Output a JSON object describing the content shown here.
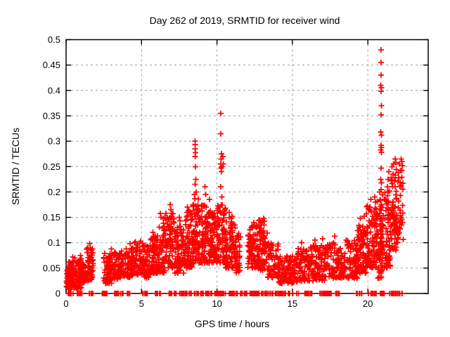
{
  "window": {
    "background": "#ffffff"
  },
  "chart_data": {
    "type": "scatter",
    "title": "Day 262 of 2019, SRMTID for receiver wind",
    "xlabel": "GPS time / hours",
    "ylabel": "SRMTID / TECUs",
    "xlim": [
      0,
      24
    ],
    "ylim": [
      0,
      0.5
    ],
    "xticks": {
      "values": [
        0,
        5,
        10,
        15,
        20
      ],
      "labels": [
        "0",
        "5",
        "10",
        "15",
        "20"
      ]
    },
    "yticks": {
      "values": [
        0,
        0.05,
        0.1,
        0.15,
        0.2,
        0.25,
        0.3,
        0.35,
        0.4,
        0.45,
        0.5
      ],
      "labels": [
        "0",
        "0.05",
        "0.1",
        "0.15",
        "0.2",
        "0.25",
        "0.3",
        "0.35",
        "0.4",
        "0.45",
        "0.5"
      ]
    },
    "grid": true,
    "legend": "none",
    "marker": "plus",
    "marker_color": "#ff0000",
    "grid_color": "#a0a0a0",
    "border_color": "#000000",
    "seed": 20190262,
    "series": [
      {
        "name": "SRMTID",
        "clusters": [
          {
            "x0": 0.02,
            "x1": 0.35,
            "n": 60,
            "ylo": 0.008,
            "yhi": 0.05,
            "pow": 1.3
          },
          {
            "x0": 0.1,
            "x1": 0.55,
            "n": 50,
            "ylo": 0.015,
            "yhi": 0.065,
            "pow": 1.3
          },
          {
            "x0": 0.55,
            "x1": 1.05,
            "n": 80,
            "ylo": 0.01,
            "yhi": 0.07,
            "pow": 1.4
          },
          {
            "x0": 1.05,
            "x1": 1.35,
            "n": 30,
            "ylo": 0.02,
            "yhi": 0.06,
            "pow": 1.3
          },
          {
            "x0": 1.35,
            "x1": 1.8,
            "n": 55,
            "ylo": 0.025,
            "yhi": 0.095,
            "pow": 1.3
          },
          {
            "x0": 2.45,
            "x1": 3.1,
            "n": 65,
            "ylo": 0.02,
            "yhi": 0.08,
            "pow": 1.4
          },
          {
            "x0": 3.1,
            "x1": 3.65,
            "n": 50,
            "ylo": 0.028,
            "yhi": 0.082,
            "pow": 1.3
          },
          {
            "x0": 3.65,
            "x1": 4.3,
            "n": 60,
            "ylo": 0.032,
            "yhi": 0.09,
            "pow": 1.3
          },
          {
            "x0": 4.3,
            "x1": 5.0,
            "n": 70,
            "ylo": 0.035,
            "yhi": 0.1,
            "pow": 1.3
          },
          {
            "x0": 5.0,
            "x1": 5.6,
            "n": 70,
            "ylo": 0.03,
            "yhi": 0.1,
            "pow": 1.3
          },
          {
            "x0": 5.6,
            "x1": 6.1,
            "n": 65,
            "ylo": 0.04,
            "yhi": 0.115,
            "pow": 1.3
          },
          {
            "x0": 6.1,
            "x1": 6.55,
            "n": 55,
            "ylo": 0.04,
            "yhi": 0.15,
            "pow": 1.4
          },
          {
            "x0": 6.55,
            "x1": 7.2,
            "n": 75,
            "ylo": 0.05,
            "yhi": 0.16,
            "pow": 1.5
          },
          {
            "x0": 7.2,
            "x1": 7.9,
            "n": 75,
            "ylo": 0.04,
            "yhi": 0.135,
            "pow": 1.4
          },
          {
            "x0": 7.9,
            "x1": 8.4,
            "n": 65,
            "ylo": 0.05,
            "yhi": 0.165,
            "pow": 1.4
          },
          {
            "x0": 8.4,
            "x1": 8.8,
            "n": 60,
            "ylo": 0.06,
            "yhi": 0.19,
            "pow": 1.4
          },
          {
            "x0": 8.8,
            "x1": 9.45,
            "n": 80,
            "ylo": 0.06,
            "yhi": 0.175,
            "pow": 1.3
          },
          {
            "x0": 9.45,
            "x1": 10.05,
            "n": 85,
            "ylo": 0.06,
            "yhi": 0.165,
            "pow": 1.3
          },
          {
            "x0": 10.05,
            "x1": 10.55,
            "n": 60,
            "ylo": 0.06,
            "yhi": 0.175,
            "pow": 1.3
          },
          {
            "x0": 10.55,
            "x1": 11.25,
            "n": 85,
            "ylo": 0.05,
            "yhi": 0.15,
            "pow": 1.3
          },
          {
            "x0": 11.25,
            "x1": 11.55,
            "n": 35,
            "ylo": 0.04,
            "yhi": 0.12,
            "pow": 1.3
          },
          {
            "x0": 12.05,
            "x1": 12.7,
            "n": 75,
            "ylo": 0.05,
            "yhi": 0.135,
            "pow": 1.3
          },
          {
            "x0": 12.7,
            "x1": 13.35,
            "n": 75,
            "ylo": 0.045,
            "yhi": 0.145,
            "pow": 1.3
          },
          {
            "x0": 13.35,
            "x1": 14.1,
            "n": 70,
            "ylo": 0.03,
            "yhi": 0.1,
            "pow": 1.3
          },
          {
            "x0": 14.1,
            "x1": 15.3,
            "n": 105,
            "ylo": 0.02,
            "yhi": 0.075,
            "pow": 1.3
          },
          {
            "x0": 15.3,
            "x1": 16.2,
            "n": 85,
            "ylo": 0.025,
            "yhi": 0.09,
            "pow": 1.3
          },
          {
            "x0": 16.2,
            "x1": 17.2,
            "n": 95,
            "ylo": 0.025,
            "yhi": 0.095,
            "pow": 1.3
          },
          {
            "x0": 17.2,
            "x1": 18.2,
            "n": 85,
            "ylo": 0.03,
            "yhi": 0.1,
            "pow": 1.3
          },
          {
            "x0": 18.2,
            "x1": 18.55,
            "n": 28,
            "ylo": 0.03,
            "yhi": 0.08,
            "pow": 1.3
          },
          {
            "x0": 18.55,
            "x1": 19.3,
            "n": 75,
            "ylo": 0.03,
            "yhi": 0.105,
            "pow": 1.3
          },
          {
            "x0": 19.3,
            "x1": 19.9,
            "n": 75,
            "ylo": 0.04,
            "yhi": 0.135,
            "pow": 1.3
          },
          {
            "x0": 19.9,
            "x1": 20.6,
            "n": 90,
            "ylo": 0.05,
            "yhi": 0.175,
            "pow": 1.3
          },
          {
            "x0": 20.6,
            "x1": 20.95,
            "n": 55,
            "ylo": 0.03,
            "yhi": 0.2,
            "pow": 1.4
          },
          {
            "x0": 20.82,
            "x1": 20.95,
            "n": 20,
            "ylo": 0.02,
            "yhi": 0.155,
            "pow": 1.0
          },
          {
            "x0": 20.95,
            "x1": 21.5,
            "n": 70,
            "ylo": 0.05,
            "yhi": 0.205,
            "pow": 1.3
          },
          {
            "x0": 21.5,
            "x1": 21.95,
            "n": 65,
            "ylo": 0.08,
            "yhi": 0.245,
            "pow": 1.2
          },
          {
            "x0": 21.95,
            "x1": 22.35,
            "n": 35,
            "ylo": 0.1,
            "yhi": 0.26,
            "pow": 1.1
          }
        ],
        "outliers": [
          [
            0.45,
            0.072
          ],
          [
            0.95,
            0.075
          ],
          [
            1.55,
            0.098
          ],
          [
            1.6,
            0.09
          ],
          [
            3.0,
            0.088
          ],
          [
            4.25,
            0.098
          ],
          [
            4.6,
            0.102
          ],
          [
            4.95,
            0.103
          ],
          [
            5.75,
            0.12
          ],
          [
            6.25,
            0.158
          ],
          [
            6.3,
            0.15
          ],
          [
            6.9,
            0.175
          ],
          [
            6.95,
            0.165
          ],
          [
            7.5,
            0.15
          ],
          [
            7.55,
            0.143
          ],
          [
            8.05,
            0.17
          ],
          [
            8.1,
            0.163
          ],
          [
            8.55,
            0.3
          ],
          [
            8.55,
            0.293
          ],
          [
            8.56,
            0.285
          ],
          [
            8.57,
            0.277
          ],
          [
            8.55,
            0.27
          ],
          [
            8.58,
            0.25
          ],
          [
            8.6,
            0.225
          ],
          [
            8.56,
            0.215
          ],
          [
            8.62,
            0.2
          ],
          [
            8.5,
            0.195
          ],
          [
            9.2,
            0.21
          ],
          [
            9.25,
            0.195
          ],
          [
            9.5,
            0.185
          ],
          [
            10.25,
            0.355
          ],
          [
            10.26,
            0.315
          ],
          [
            10.3,
            0.275
          ],
          [
            10.28,
            0.265
          ],
          [
            10.25,
            0.255
          ],
          [
            10.32,
            0.25
          ],
          [
            10.27,
            0.247
          ],
          [
            10.3,
            0.24
          ],
          [
            10.26,
            0.21
          ],
          [
            10.33,
            0.19
          ],
          [
            10.4,
            0.27
          ],
          [
            10.42,
            0.255
          ],
          [
            10.8,
            0.16
          ],
          [
            11.0,
            0.152
          ],
          [
            12.45,
            0.14
          ],
          [
            13.1,
            0.148
          ],
          [
            15.6,
            0.1
          ],
          [
            16.5,
            0.105
          ],
          [
            17.0,
            0.108
          ],
          [
            17.8,
            0.113
          ],
          [
            19.5,
            0.148
          ],
          [
            19.75,
            0.152
          ],
          [
            20.2,
            0.185
          ],
          [
            20.45,
            0.19
          ],
          [
            20.5,
            0.18
          ],
          [
            20.88,
            0.48
          ],
          [
            20.87,
            0.455
          ],
          [
            20.88,
            0.43
          ],
          [
            20.86,
            0.41
          ],
          [
            20.89,
            0.405
          ],
          [
            20.87,
            0.398
          ],
          [
            20.9,
            0.37
          ],
          [
            20.88,
            0.352
          ],
          [
            20.86,
            0.318
          ],
          [
            20.9,
            0.312
          ],
          [
            20.87,
            0.292
          ],
          [
            20.89,
            0.288
          ],
          [
            20.86,
            0.283
          ],
          [
            20.9,
            0.278
          ],
          [
            20.88,
            0.247
          ],
          [
            20.86,
            0.225
          ],
          [
            20.9,
            0.218
          ],
          [
            20.87,
            0.205
          ],
          [
            21.3,
            0.21
          ],
          [
            21.35,
            0.225
          ],
          [
            21.4,
            0.24
          ],
          [
            21.6,
            0.25
          ],
          [
            21.7,
            0.255
          ],
          [
            21.8,
            0.265
          ],
          [
            21.85,
            0.258
          ],
          [
            22.0,
            0.22
          ],
          [
            22.1,
            0.255
          ],
          [
            22.2,
            0.265
          ],
          [
            22.25,
            0.26
          ],
          [
            22.3,
            0.252
          ]
        ],
        "zero_clusters": [
          {
            "x0": 0.15,
            "x1": 0.5,
            "n": 6
          },
          {
            "x0": 0.7,
            "x1": 1.1,
            "n": 8
          },
          {
            "x0": 1.5,
            "x1": 1.8,
            "n": 6
          },
          {
            "x0": 2.4,
            "x1": 2.7,
            "n": 8
          },
          {
            "x0": 3.2,
            "x1": 3.5,
            "n": 8
          },
          {
            "x0": 3.6,
            "x1": 4.4,
            "n": 10
          },
          {
            "x0": 5.0,
            "x1": 5.4,
            "n": 8
          },
          {
            "x0": 5.9,
            "x1": 6.3,
            "n": 10
          },
          {
            "x0": 6.8,
            "x1": 7.3,
            "n": 10
          },
          {
            "x0": 7.5,
            "x1": 8.3,
            "n": 14
          },
          {
            "x0": 8.5,
            "x1": 9.1,
            "n": 16
          },
          {
            "x0": 9.2,
            "x1": 10.6,
            "n": 30
          },
          {
            "x0": 10.8,
            "x1": 12.0,
            "n": 22
          },
          {
            "x0": 12.1,
            "x1": 13.4,
            "n": 30
          },
          {
            "x0": 13.5,
            "x1": 14.6,
            "n": 26
          },
          {
            "x0": 14.7,
            "x1": 15.4,
            "n": 10
          },
          {
            "x0": 15.8,
            "x1": 16.3,
            "n": 10
          },
          {
            "x0": 16.8,
            "x1": 17.6,
            "n": 18
          },
          {
            "x0": 17.8,
            "x1": 18.2,
            "n": 8
          },
          {
            "x0": 19.2,
            "x1": 19.6,
            "n": 10
          },
          {
            "x0": 20.0,
            "x1": 20.6,
            "n": 12
          },
          {
            "x0": 20.8,
            "x1": 21.1,
            "n": 8
          },
          {
            "x0": 21.3,
            "x1": 22.3,
            "n": 18
          }
        ]
      }
    ]
  }
}
